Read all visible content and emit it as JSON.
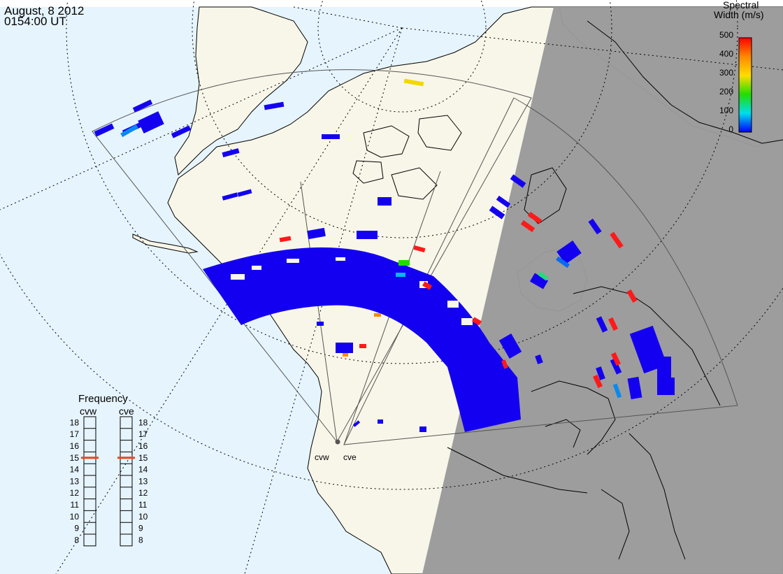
{
  "header": {
    "date": "August, 8 2012",
    "time": "0154:00 UT"
  },
  "colorbar": {
    "title_line1": "Spectral",
    "title_line2": "Width (m/s)",
    "ticks": [
      "500",
      "400",
      "300",
      "200",
      "100",
      "0"
    ],
    "colors": [
      "#ff0000",
      "#ff8800",
      "#ffdd00",
      "#00cc00",
      "#00cccc",
      "#0000ff"
    ]
  },
  "frequency_panel": {
    "title": "Frequency",
    "radar_left": "cvw",
    "radar_right": "cve",
    "scale": [
      "18",
      "17",
      "16",
      "15",
      "14",
      "13",
      "12",
      "11",
      "10",
      "9",
      "8"
    ],
    "cvw_frequency_mhz": 15,
    "cve_frequency_mhz": 15,
    "marker_color": "#e8481c"
  },
  "radars": [
    {
      "code": "cvw",
      "name": "cvw"
    },
    {
      "code": "cve",
      "name": "cve"
    }
  ],
  "colors": {
    "ocean": "#e6f4fd",
    "land": "#f8f6e8",
    "night": "#9a9a9a",
    "scatter_low": "#1400f0",
    "scatter_high": "#ff1a1a"
  }
}
